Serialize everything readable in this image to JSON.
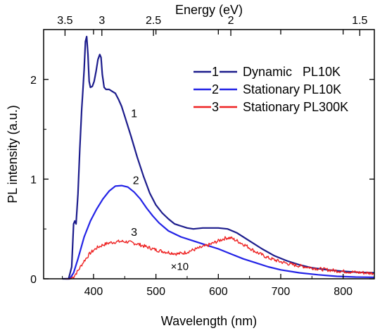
{
  "chart_data": {
    "type": "line",
    "xlabel": "Wavelength (nm)",
    "ylabel": "PL intensity (a.u.)",
    "top_xlabel": "Energy (eV)",
    "xlim": [
      320,
      850
    ],
    "ylim": [
      0,
      2.5
    ],
    "x_ticks": [
      400,
      500,
      600,
      700,
      800
    ],
    "x_tick_labels": [
      "400",
      "500",
      "600",
      "700",
      "800"
    ],
    "y_ticks": [
      0,
      1,
      2
    ],
    "y_tick_labels": [
      "0",
      "1",
      "2"
    ],
    "top_ticks": [
      3.5,
      3,
      2.5,
      2,
      1.5
    ],
    "top_tick_labels": [
      "3.5",
      "3",
      "2.5",
      "2",
      "1.5"
    ],
    "grid": false,
    "legend_position": "top-right",
    "series": [
      {
        "name": "Dynamic   PL10K",
        "legend_marker": "1",
        "label": "1",
        "label_at": [
          460,
          1.62
        ],
        "color": "#1c1c8c",
        "points": [
          [
            350,
            0
          ],
          [
            360,
            0
          ],
          [
            365,
            0.12
          ],
          [
            368,
            0.55
          ],
          [
            370,
            0.58
          ],
          [
            372,
            0.55
          ],
          [
            375,
            0.85
          ],
          [
            378,
            1.3
          ],
          [
            381,
            1.7
          ],
          [
            383,
            1.9
          ],
          [
            385,
            2.1
          ],
          [
            387,
            2.38
          ],
          [
            389,
            2.43
          ],
          [
            391,
            2.25
          ],
          [
            393,
            1.98
          ],
          [
            395,
            1.92
          ],
          [
            398,
            1.93
          ],
          [
            401,
            1.98
          ],
          [
            404,
            2.08
          ],
          [
            407,
            2.2
          ],
          [
            410,
            2.25
          ],
          [
            412,
            2.22
          ],
          [
            414,
            2.05
          ],
          [
            417,
            1.92
          ],
          [
            420,
            1.9
          ],
          [
            425,
            1.9
          ],
          [
            430,
            1.88
          ],
          [
            435,
            1.86
          ],
          [
            440,
            1.8
          ],
          [
            445,
            1.73
          ],
          [
            450,
            1.63
          ],
          [
            460,
            1.43
          ],
          [
            470,
            1.22
          ],
          [
            480,
            1.03
          ],
          [
            490,
            0.86
          ],
          [
            500,
            0.74
          ],
          [
            510,
            0.66
          ],
          [
            520,
            0.6
          ],
          [
            530,
            0.55
          ],
          [
            540,
            0.53
          ],
          [
            550,
            0.51
          ],
          [
            560,
            0.5
          ],
          [
            575,
            0.51
          ],
          [
            590,
            0.51
          ],
          [
            600,
            0.51
          ],
          [
            615,
            0.5
          ],
          [
            630,
            0.46
          ],
          [
            650,
            0.38
          ],
          [
            670,
            0.3
          ],
          [
            690,
            0.23
          ],
          [
            710,
            0.18
          ],
          [
            730,
            0.14
          ],
          [
            750,
            0.11
          ],
          [
            775,
            0.09
          ],
          [
            800,
            0.075
          ],
          [
            825,
            0.065
          ],
          [
            850,
            0.06
          ]
        ]
      },
      {
        "name": "Stationary PL10K",
        "legend_marker": "2",
        "label": "2",
        "label_at": [
          463,
          0.95
        ],
        "color": "#2323e6",
        "points": [
          [
            355,
            0
          ],
          [
            362,
            0
          ],
          [
            368,
            0.06
          ],
          [
            375,
            0.2
          ],
          [
            385,
            0.42
          ],
          [
            395,
            0.58
          ],
          [
            405,
            0.7
          ],
          [
            415,
            0.8
          ],
          [
            425,
            0.88
          ],
          [
            435,
            0.93
          ],
          [
            445,
            0.935
          ],
          [
            455,
            0.92
          ],
          [
            465,
            0.87
          ],
          [
            475,
            0.8
          ],
          [
            485,
            0.71
          ],
          [
            495,
            0.63
          ],
          [
            505,
            0.56
          ],
          [
            520,
            0.48
          ],
          [
            540,
            0.42
          ],
          [
            560,
            0.38
          ],
          [
            580,
            0.34
          ],
          [
            600,
            0.3
          ],
          [
            620,
            0.25
          ],
          [
            640,
            0.2
          ],
          [
            660,
            0.16
          ],
          [
            680,
            0.12
          ],
          [
            700,
            0.09
          ],
          [
            730,
            0.06
          ],
          [
            760,
            0.04
          ],
          [
            790,
            0.025
          ],
          [
            820,
            0.018
          ],
          [
            850,
            0.015
          ]
        ]
      },
      {
        "name": "Stationary PL300K",
        "legend_marker": "3",
        "label": "3",
        "label_at": [
          460,
          0.43
        ],
        "color": "#ee2222",
        "noisy": true,
        "points": [
          [
            355,
            0
          ],
          [
            362,
            0
          ],
          [
            368,
            0.02
          ],
          [
            375,
            0.08
          ],
          [
            385,
            0.18
          ],
          [
            395,
            0.26
          ],
          [
            405,
            0.31
          ],
          [
            415,
            0.34
          ],
          [
            425,
            0.36
          ],
          [
            435,
            0.37
          ],
          [
            445,
            0.375
          ],
          [
            455,
            0.37
          ],
          [
            470,
            0.35
          ],
          [
            485,
            0.32
          ],
          [
            500,
            0.29
          ],
          [
            515,
            0.27
          ],
          [
            525,
            0.26
          ],
          [
            535,
            0.25
          ],
          [
            545,
            0.26
          ],
          [
            555,
            0.28
          ],
          [
            570,
            0.31
          ],
          [
            585,
            0.34
          ],
          [
            600,
            0.38
          ],
          [
            612,
            0.41
          ],
          [
            620,
            0.41
          ],
          [
            630,
            0.38
          ],
          [
            645,
            0.33
          ],
          [
            660,
            0.27
          ],
          [
            680,
            0.21
          ],
          [
            700,
            0.17
          ],
          [
            720,
            0.14
          ],
          [
            740,
            0.12
          ],
          [
            760,
            0.1
          ],
          [
            790,
            0.08
          ],
          [
            820,
            0.065
          ],
          [
            850,
            0.055
          ]
        ]
      }
    ],
    "annotations": [
      {
        "text": "×10",
        "at": [
          538,
          0.09
        ]
      }
    ]
  }
}
